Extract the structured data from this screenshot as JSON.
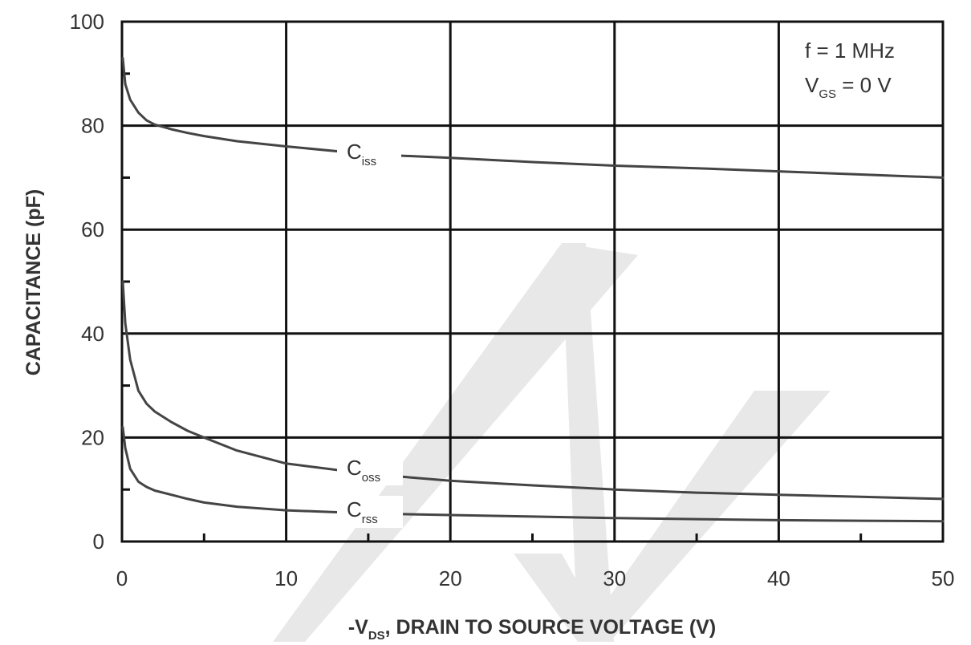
{
  "chart_data": {
    "type": "line",
    "title": "",
    "xlabel": {
      "prefix": "-V",
      "sub": "DS",
      "suffix": ", DRAIN TO SOURCE VOLTAGE (V)"
    },
    "ylabel": "CAPACITANCE (pF)",
    "xlim": [
      0,
      50
    ],
    "ylim": [
      0,
      100
    ],
    "xticks": [
      "0",
      "10",
      "20",
      "30",
      "40",
      "50"
    ],
    "yticks": [
      "0",
      "20",
      "40",
      "60",
      "80",
      "100"
    ],
    "grid": true,
    "conditions": {
      "line1": "f = 1 MHz",
      "line2_prefix": "V",
      "line2_sub": "GS",
      "line2_suffix": " = 0 V"
    },
    "series": [
      {
        "name": "C",
        "sub": "iss",
        "x": [
          0.05,
          0.2,
          0.5,
          1,
          1.5,
          2,
          3,
          4,
          5,
          7,
          10,
          15,
          20,
          25,
          30,
          35,
          40,
          45,
          50
        ],
        "values": [
          93,
          88,
          85,
          82.5,
          81,
          80.2,
          79.3,
          78.6,
          78,
          77,
          76,
          74.5,
          73.8,
          73,
          72.3,
          71.8,
          71.2,
          70.6,
          70
        ]
      },
      {
        "name": "C",
        "sub": "oss",
        "x": [
          0.05,
          0.2,
          0.5,
          1,
          1.5,
          2,
          3,
          4,
          5,
          7,
          10,
          15,
          20,
          25,
          30,
          35,
          40,
          45,
          50
        ],
        "values": [
          50,
          42,
          35,
          29,
          26.5,
          25,
          23,
          21.3,
          20,
          17.5,
          15,
          13,
          11.7,
          10.8,
          10,
          9.4,
          9,
          8.6,
          8.2
        ]
      },
      {
        "name": "C",
        "sub": "rss",
        "x": [
          0.05,
          0.2,
          0.5,
          1,
          1.5,
          2,
          3,
          4,
          5,
          7,
          10,
          15,
          20,
          25,
          30,
          35,
          40,
          45,
          50
        ],
        "values": [
          22,
          18,
          14,
          11.5,
          10.5,
          9.8,
          9,
          8.2,
          7.5,
          6.7,
          6,
          5.4,
          5.1,
          4.8,
          4.5,
          4.3,
          4.1,
          4,
          3.9
        ]
      }
    ],
    "colors": {
      "curve": "#444444",
      "grid": "#111111",
      "text": "#333333",
      "watermark": "#e6e6e6"
    }
  }
}
